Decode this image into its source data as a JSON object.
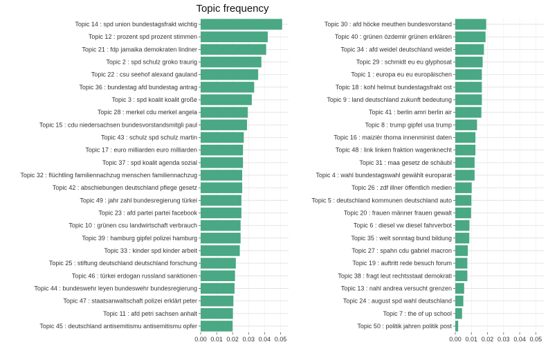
{
  "chart_data": [
    {
      "type": "bar",
      "orientation": "horizontal",
      "title": "Topic frequency",
      "bar_color": "#4aa884",
      "xlim": [
        0,
        0.055
      ],
      "xticks": [
        "0.00",
        "0.01",
        "0.02",
        "0.03",
        "0.04",
        "0.05"
      ],
      "grid": true,
      "categories": [
        "Topic 14 : spd union bundestagsfrakt wichtig",
        "Topic 12 : prozent spd prozent stimmen",
        "Topic 21 : fdp jamaika demokraten lindner",
        "Topic 2 : spd schulz groko traurig",
        "Topic 22 : csu seehof alexand gauland",
        "Topic 36 : bundestag afd bundestag antrag",
        "Topic 3 : spd koalit koalit große",
        "Topic 28 : merkel cdu merkel angela",
        "Topic 15 : cdu niedersachsen bundesvorstandsmitgli paul",
        "Topic 43 : schulz spd schulz martin",
        "Topic 17 : euro milliarden euro milliarden",
        "Topic 37 : spd koalit agenda sozial",
        "Topic 32 : flüchtling familiennachzug menschen familiennachzug",
        "Topic 42 : abschiebungen deutschland pflege gesetz",
        "Topic 49 : jahr zahl bundesregierung türkei",
        "Topic 23 : afd partei partei facebook",
        "Topic 10 : grünen csu landwirtschaft verbrauch",
        "Topic 39 : hamburg gipfel polizei hamburg",
        "Topic 33 : kinder spd kinder arbeit",
        "Topic 25 : stiftung deutschland deutschland forschung",
        "Topic 46 : türkei erdogan russland sanktionen",
        "Topic 44 : bundeswehr leyen bundeswehr bundesregierung",
        "Topic 47 : staatsanwaltschaft polizei erklärt peter",
        "Topic 11 : afd petri sachsen anhalt",
        "Topic 45 : deutschland antisemitismu antisemitismu opfer"
      ],
      "values": [
        0.051,
        0.042,
        0.041,
        0.038,
        0.036,
        0.0335,
        0.032,
        0.0295,
        0.029,
        0.027,
        0.0265,
        0.0265,
        0.026,
        0.026,
        0.0255,
        0.0255,
        0.025,
        0.025,
        0.0245,
        0.022,
        0.0215,
        0.0212,
        0.0205,
        0.0202,
        0.02
      ]
    },
    {
      "type": "bar",
      "orientation": "horizontal",
      "bar_color": "#4aa884",
      "xlim": [
        0,
        0.055
      ],
      "xticks": [
        "0.00",
        "0.01",
        "0.02",
        "0.03",
        "0.04",
        "0.05"
      ],
      "grid": true,
      "categories": [
        "Topic 30 : afd höcke meuthen bundesvorstand",
        "Topic 40 : grünen özdemir grünen erklären",
        "Topic 34 : afd weidel deutschland weidel",
        "Topic 29 : schmidt eu eu glyphosat",
        "Topic 1 : europa eu eu europäischen",
        "Topic 18 : kohl helmut bundestagsfrakt ost",
        "Topic 9 : land deutschland zukunft bedeutung",
        "Topic 41 : berlin amri berlin air",
        "Topic 8 : trump gipfel usa trump",
        "Topic 16 : maizièr thoma innenminist daten",
        "Topic 48 : link linken fraktion wagenknecht",
        "Topic 31 : maa gesetz de schäubl",
        "Topic 4 : wahl bundestagswahl gewählt europarat",
        "Topic 26 : zdf illner öffentlich medien",
        "Topic 5 : deutschland kommunen deutschland auto",
        "Topic 20 : frauen männer frauen gewalt",
        "Topic 6 : diesel vw diesel fahrverbot",
        "Topic 35 : welt sonntag bund bildung",
        "Topic 27 : spahn cdu gabriel macron",
        "Topic 19 : auftritt rede besuch forum",
        "Topic 38 : fragt leut rechtsstaat demokrati",
        "Topic 13 : nahl andrea versucht grenzen",
        "Topic 24 : august spd wahl deutschland",
        "Topic 7 : the of up school",
        "Topic 50 : politik jahren politik post"
      ],
      "values": [
        0.0192,
        0.0188,
        0.0178,
        0.017,
        0.0165,
        0.0165,
        0.0165,
        0.0162,
        0.0135,
        0.0125,
        0.0125,
        0.012,
        0.012,
        0.0102,
        0.01,
        0.0098,
        0.0088,
        0.0087,
        0.0078,
        0.0075,
        0.0075,
        0.0055,
        0.005,
        0.0042,
        0.0018
      ]
    }
  ]
}
